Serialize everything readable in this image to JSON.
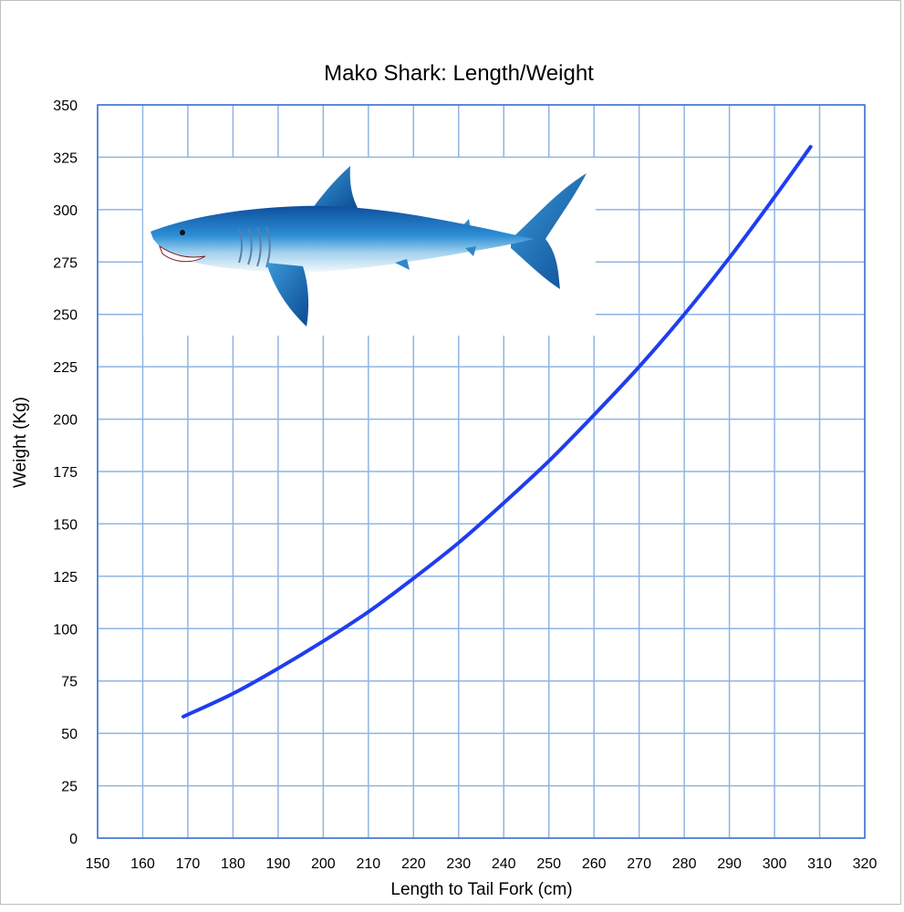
{
  "chart_data": {
    "type": "line",
    "title": "Mako Shark: Length/Weight",
    "xlabel": "Length to Tail Fork (cm)",
    "ylabel": "Weight (Kg)",
    "xlim": [
      150,
      320
    ],
    "ylim": [
      0,
      350
    ],
    "xticks": [
      150,
      160,
      170,
      180,
      190,
      200,
      210,
      220,
      230,
      240,
      250,
      260,
      270,
      280,
      290,
      300,
      310,
      320
    ],
    "yticks": [
      0,
      25,
      50,
      75,
      100,
      125,
      150,
      175,
      200,
      225,
      250,
      275,
      300,
      325,
      350
    ],
    "grid": true,
    "legend": "none",
    "series": [
      {
        "color": "#1f3df0",
        "x": [
          169,
          180,
          190,
          200,
          210,
          220,
          230,
          240,
          250,
          260,
          270,
          280,
          290,
          300,
          308
        ],
        "y": [
          58,
          69,
          81,
          94,
          108,
          124,
          141,
          160,
          180,
          202,
          225,
          250,
          277,
          306,
          330
        ]
      }
    ],
    "colors": {
      "grid": "#8fb4e3",
      "plot_border": "#3a6fd0",
      "line": "#1f3df0"
    },
    "image": {
      "name": "mako-shark-illustration",
      "placement": "upper-left of plot"
    }
  }
}
